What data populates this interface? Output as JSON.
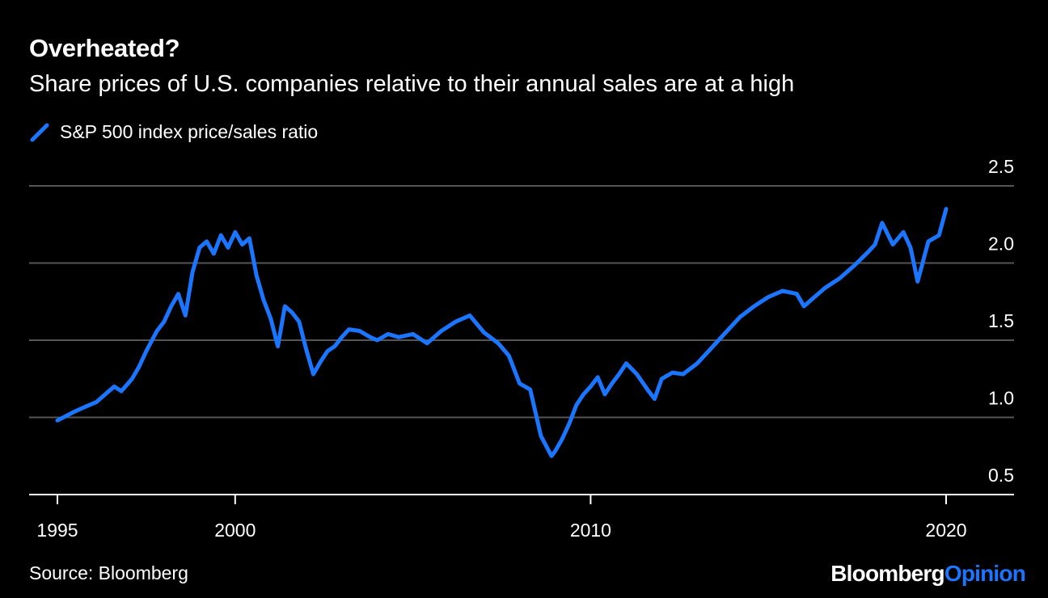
{
  "title": "Overheated?",
  "subtitle": "Share prices of U.S. companies relative to their annual sales are at a high",
  "legend_label": "S&P 500 index price/sales ratio",
  "source": "Source: Bloomberg",
  "brand": {
    "part1": "Bloomberg",
    "part2": "Opinion"
  },
  "colors": {
    "background": "#000000",
    "line": "#1a75ff",
    "grid": "#555555",
    "axis": "#ffffff",
    "text": "#ffffff"
  },
  "chart_data": {
    "type": "line",
    "title": "Overheated?",
    "subtitle": "Share prices of U.S. companies relative to their annual sales are at a high",
    "xlabel": "",
    "ylabel": "",
    "xlim": [
      1995,
      2021.9
    ],
    "ylim": [
      0.5,
      2.5
    ],
    "yaxis_side": "right",
    "y_ticks": [
      0.5,
      1.0,
      1.5,
      2.0,
      2.5
    ],
    "y_tick_labels": [
      "0.5",
      "1.0",
      "1.5",
      "2.0",
      "2.5"
    ],
    "x_ticks": [
      1995,
      2000,
      2010,
      2020
    ],
    "x_tick_labels": [
      "1995",
      "2000",
      "2010",
      "2020"
    ],
    "grid": true,
    "legend_position": "top-left",
    "series": [
      {
        "name": "S&P 500 index price/sales ratio",
        "x": [
          1995.0,
          1995.5,
          1995.8,
          1996.1,
          1996.4,
          1996.6,
          1996.8,
          1997.1,
          1997.3,
          1997.5,
          1997.8,
          1998.0,
          1998.2,
          1998.4,
          1998.6,
          1998.8,
          1999.0,
          1999.2,
          1999.4,
          1999.6,
          1999.8,
          2000.0,
          2000.2,
          2000.4,
          2000.6,
          2000.8,
          2001.0,
          2001.2,
          2001.4,
          2001.6,
          2001.8,
          2002.0,
          2002.2,
          2002.4,
          2002.6,
          2002.8,
          2003.0,
          2003.2,
          2003.5,
          2003.8,
          2004.0,
          2004.3,
          2004.6,
          2005.0,
          2005.4,
          2005.8,
          2006.2,
          2006.6,
          2007.0,
          2007.4,
          2007.7,
          2008.0,
          2008.3,
          2008.6,
          2008.9,
          2009.0,
          2009.2,
          2009.4,
          2009.6,
          2009.8,
          2010.0,
          2010.2,
          2010.4,
          2010.6,
          2010.8,
          2011.0,
          2011.3,
          2011.6,
          2011.8,
          2012.0,
          2012.3,
          2012.6,
          2013.0,
          2013.4,
          2013.8,
          2014.2,
          2014.6,
          2015.0,
          2015.4,
          2015.8,
          2016.0,
          2016.3,
          2016.6,
          2017.0,
          2017.4,
          2017.8,
          2018.0,
          2018.2,
          2018.5,
          2018.8,
          2019.0,
          2019.2,
          2019.5,
          2019.8,
          2020.0
        ],
        "values": [
          0.98,
          1.04,
          1.07,
          1.1,
          1.16,
          1.2,
          1.17,
          1.25,
          1.33,
          1.43,
          1.56,
          1.62,
          1.72,
          1.8,
          1.66,
          1.94,
          2.1,
          2.14,
          2.06,
          2.18,
          2.1,
          2.2,
          2.12,
          2.16,
          1.92,
          1.76,
          1.64,
          1.46,
          1.72,
          1.68,
          1.62,
          1.44,
          1.28,
          1.36,
          1.43,
          1.46,
          1.52,
          1.57,
          1.56,
          1.52,
          1.5,
          1.54,
          1.52,
          1.54,
          1.48,
          1.56,
          1.62,
          1.66,
          1.55,
          1.48,
          1.4,
          1.22,
          1.18,
          0.88,
          0.75,
          0.78,
          0.86,
          0.96,
          1.08,
          1.15,
          1.2,
          1.26,
          1.15,
          1.22,
          1.28,
          1.35,
          1.28,
          1.18,
          1.12,
          1.25,
          1.29,
          1.28,
          1.35,
          1.45,
          1.55,
          1.65,
          1.72,
          1.78,
          1.82,
          1.8,
          1.72,
          1.78,
          1.84,
          1.9,
          1.98,
          2.07,
          2.12,
          2.26,
          2.12,
          2.2,
          2.1,
          1.88,
          2.14,
          2.18,
          2.35
        ]
      }
    ]
  }
}
